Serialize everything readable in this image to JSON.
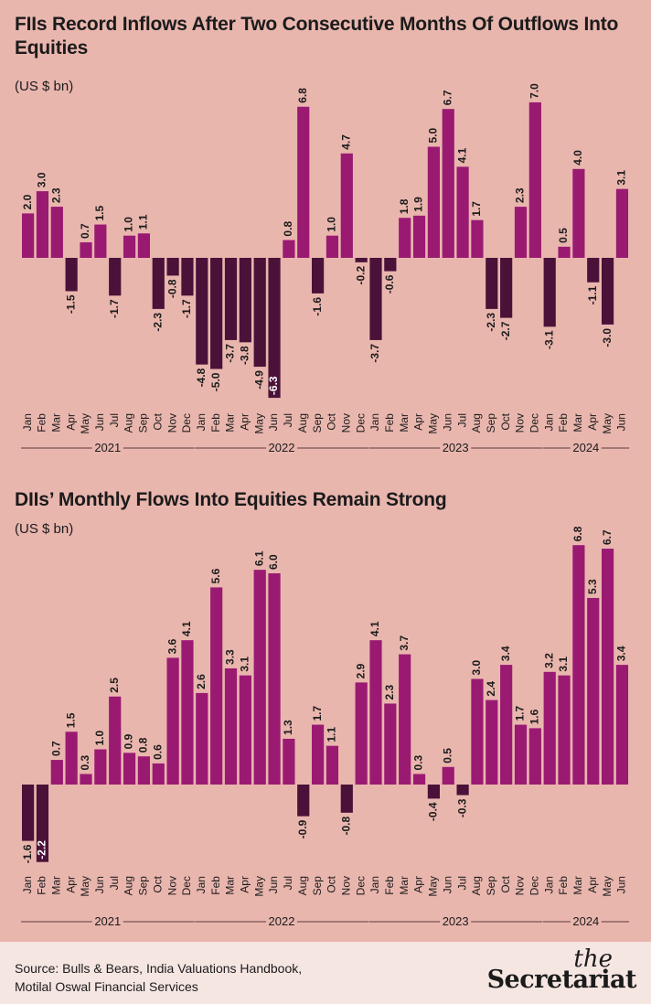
{
  "colors": {
    "positive": "#9a1a72",
    "negative": "#4a1238",
    "background": "#e9b6ae",
    "footer": "#f6e6e2",
    "text": "#1b1b1b"
  },
  "chart_data": [
    {
      "type": "bar",
      "title": "FIIs Record Inflows After Two Consecutive Months Of Outflows Into Equities",
      "unit": "(US $ bn)",
      "categories": [
        "Jan",
        "Feb",
        "Mar",
        "Apr",
        "May",
        "Jun",
        "Jul",
        "Aug",
        "Sep",
        "Oct",
        "Nov",
        "Dec",
        "Jan",
        "Feb",
        "Mar",
        "Apr",
        "May",
        "Jun",
        "Jul",
        "Aug",
        "Sep",
        "Oct",
        "Nov",
        "Dec",
        "Jan",
        "Feb",
        "Mar",
        "Apr",
        "May",
        "Jun",
        "Jul",
        "Aug",
        "Sep",
        "Oct",
        "Nov",
        "Dec",
        "Jan",
        "Feb",
        "Mar",
        "Apr",
        "May",
        "Jun"
      ],
      "years": [
        "2021",
        "2022",
        "2023",
        "2024"
      ],
      "values": [
        2.0,
        3.0,
        2.3,
        -1.5,
        0.7,
        1.5,
        -1.7,
        1.0,
        1.1,
        -2.3,
        -0.8,
        -1.7,
        -4.8,
        -5.0,
        -3.7,
        -3.8,
        -4.9,
        -6.3,
        0.8,
        6.8,
        -1.6,
        1.0,
        4.7,
        -0.2,
        -3.7,
        -0.6,
        1.8,
        1.9,
        5.0,
        6.7,
        4.1,
        1.7,
        -2.3,
        -2.7,
        2.3,
        7.0,
        -3.1,
        0.5,
        4.0,
        -1.1,
        -3.0,
        3.1
      ],
      "labels": [
        "2.0",
        "3.0",
        "2.3",
        "-1.5",
        "0.7",
        "1.5",
        "-1.7",
        "1.0",
        "1.1",
        "-2.3",
        "-0.8",
        "-1.7",
        "-4.8",
        "-5.0",
        "-3.7",
        "-3.8",
        "-4.9",
        "-6.3",
        "0.8",
        "6.8",
        "-1.6",
        "1.0",
        "4.7",
        "-0.2",
        "-3.7",
        "-0.6",
        "1.8",
        "1.9",
        "5.0",
        "6.7",
        "4.1",
        "1.7",
        "-2.3",
        "-2.7",
        "2.3",
        "7.0",
        "-3.1",
        "0.5",
        "4.0",
        "-1.1",
        "-3.0",
        "3.1"
      ],
      "grid": false
    },
    {
      "type": "bar",
      "title": "DIIs’ Monthly Flows Into Equities Remain Strong",
      "unit": "(US $ bn)",
      "categories": [
        "Jan",
        "Feb",
        "Mar",
        "Apr",
        "May",
        "Jun",
        "Jul",
        "Aug",
        "Sep",
        "Oct",
        "Nov",
        "Dec",
        "Jan",
        "Feb",
        "Mar",
        "Apr",
        "May",
        "Jun",
        "Jul",
        "Aug",
        "Sep",
        "Oct",
        "Nov",
        "Dec",
        "Jan",
        "Feb",
        "Mar",
        "Apr",
        "May",
        "Jun",
        "Jul",
        "Aug",
        "Sep",
        "Oct",
        "Nov",
        "Dec",
        "Jan",
        "Feb",
        "Mar",
        "Apr",
        "May",
        "Jun"
      ],
      "years": [
        "2021",
        "2022",
        "2023",
        "2024"
      ],
      "values": [
        -1.6,
        -2.2,
        0.7,
        1.5,
        0.3,
        1.0,
        2.5,
        0.9,
        0.8,
        0.6,
        3.6,
        4.1,
        2.6,
        5.6,
        3.3,
        3.1,
        6.1,
        6.0,
        1.3,
        -0.9,
        1.7,
        1.1,
        -0.8,
        2.9,
        4.1,
        2.3,
        3.7,
        0.3,
        -0.4,
        0.5,
        -0.3,
        3.0,
        2.4,
        3.4,
        1.7,
        1.6,
        3.2,
        3.1,
        6.8,
        5.3,
        6.7,
        3.4
      ],
      "labels": [
        "-1.6",
        "-2.2",
        "0.7",
        "1.5",
        "0.3",
        "1.0",
        "2.5",
        "0.9",
        "0.8",
        "0.6",
        "3.6",
        "4.1",
        "2.6",
        "5.6",
        "3.3",
        "3.1",
        "6.1",
        "6.0",
        "1.3",
        "-0.9",
        "1.7",
        "1.1",
        "-0.8",
        "2.9",
        "4.1",
        "2.3",
        "3.7",
        "0.3",
        "-0.4",
        "0.5",
        "-0.3",
        "3.0",
        "2.4",
        "3.4",
        "1.7",
        "1.6",
        "3.2",
        "3.1",
        "6.8",
        "5.3",
        "6.7",
        "3.4"
      ],
      "grid": false
    }
  ],
  "footer": {
    "source_line1": "Source: Bulls & Bears, India Valuations Handbook,",
    "source_line2": "Motilal Oswal Financial Services",
    "brand_the": "the",
    "brand_name": "Secretariat"
  }
}
